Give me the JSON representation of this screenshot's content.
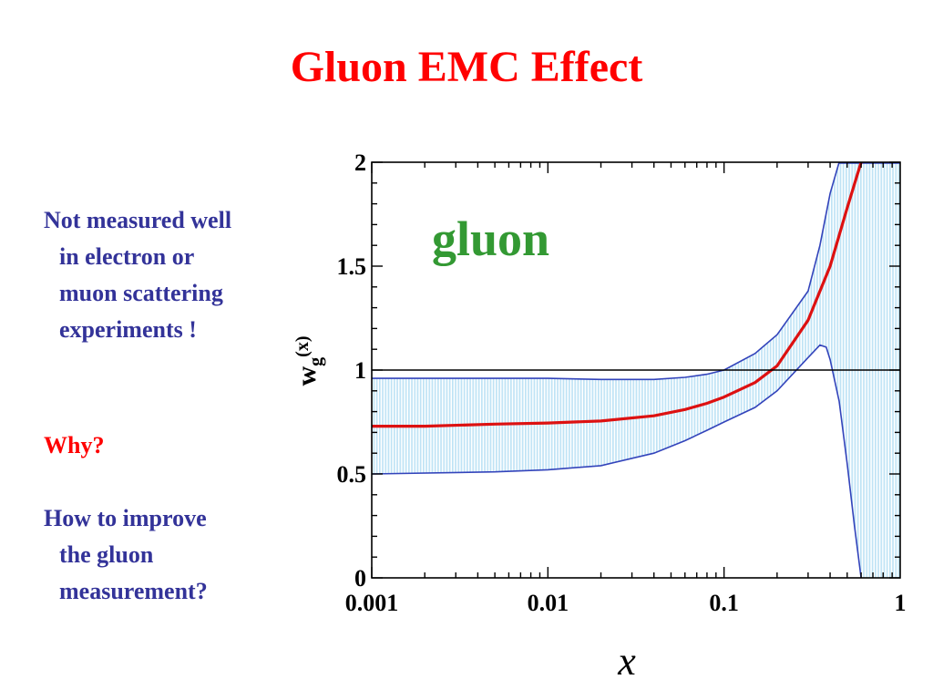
{
  "slide": {
    "title": "Gluon EMC Effect",
    "note_lines": [
      "Not measured well",
      "in electron or",
      "muon scattering",
      "experiments !"
    ],
    "why": "Why?",
    "improve_lines": [
      "How to improve",
      "the gluon",
      "measurement?"
    ]
  },
  "colors": {
    "title": "#ff0000",
    "body_text": "#333399",
    "band_fill": "#bfe3f5",
    "band_edge": "#3344bb",
    "central_curve": "#dd1111",
    "series_label": "#339933",
    "reference_line": "#000000"
  },
  "chart_data": {
    "type": "line",
    "x_scale": "log",
    "xlim": [
      0.001,
      1
    ],
    "ylim": [
      0,
      2
    ],
    "x_ticks": [
      0.001,
      0.01,
      0.1,
      1
    ],
    "x_tick_labels": [
      "0.001",
      "0.01",
      "0.1",
      "1"
    ],
    "y_ticks": [
      0,
      0.5,
      1,
      1.5,
      2
    ],
    "y_tick_labels": [
      "0",
      "0.5",
      "1",
      "1.5",
      "2"
    ],
    "xlabel": "x",
    "ylabel": "w",
    "ylabel_sub": "g",
    "ylabel_arg": "(x)",
    "series_label": "gluon",
    "reference_line_y": 1,
    "grid": false,
    "series": [
      {
        "role": "central",
        "x": [
          0.001,
          0.002,
          0.005,
          0.01,
          0.02,
          0.04,
          0.06,
          0.08,
          0.1,
          0.15,
          0.2,
          0.3,
          0.4,
          0.5,
          0.6
        ],
        "y": [
          0.73,
          0.73,
          0.74,
          0.745,
          0.755,
          0.78,
          0.81,
          0.84,
          0.87,
          0.94,
          1.02,
          1.24,
          1.5,
          1.78,
          2.0
        ]
      },
      {
        "role": "upper",
        "x": [
          0.001,
          0.005,
          0.01,
          0.02,
          0.04,
          0.06,
          0.08,
          0.1,
          0.15,
          0.2,
          0.3,
          0.35,
          0.4,
          0.45
        ],
        "y": [
          0.96,
          0.96,
          0.96,
          0.955,
          0.955,
          0.965,
          0.98,
          1.0,
          1.08,
          1.17,
          1.38,
          1.6,
          1.85,
          2.0
        ]
      },
      {
        "role": "lower",
        "x": [
          0.001,
          0.005,
          0.01,
          0.02,
          0.04,
          0.06,
          0.08,
          0.1,
          0.15,
          0.2,
          0.3,
          0.35,
          0.38,
          0.4,
          0.45,
          0.5,
          0.55,
          0.6
        ],
        "y": [
          0.5,
          0.51,
          0.52,
          0.54,
          0.6,
          0.66,
          0.71,
          0.75,
          0.82,
          0.9,
          1.06,
          1.12,
          1.11,
          1.05,
          0.85,
          0.55,
          0.25,
          0.0
        ]
      }
    ]
  }
}
